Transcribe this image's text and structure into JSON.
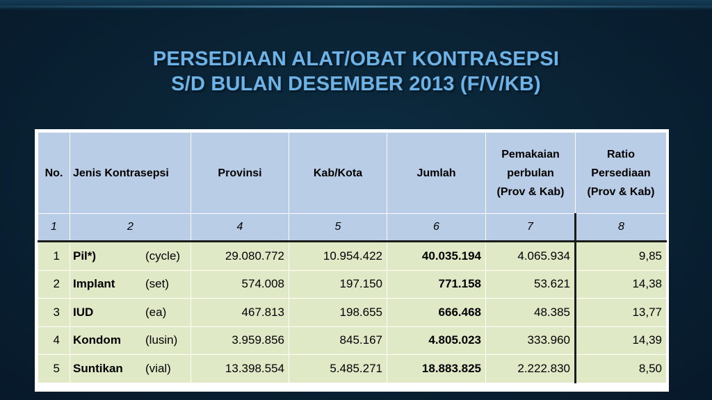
{
  "title": {
    "line1": "PERSEDIAAN ALAT/OBAT KONTRASEPSI",
    "line2": "S/D BULAN DESEMBER 2013 (F/V/KB)"
  },
  "colors": {
    "background": "#0a2436",
    "title": "#6fb2e6",
    "header_fill": "#b9cde6",
    "row_fill": "#dfe9c5"
  },
  "table": {
    "headers": {
      "no": "No.",
      "jenis": "Jenis Kontrasepsi",
      "provinsi": "Provinsi",
      "kabkota": "Kab/Kota",
      "jumlah": "Jumlah",
      "pemakaian_l1": "Pemakaian",
      "pemakaian_l2": "perbulan",
      "pemakaian_l3": "(Prov & Kab)",
      "ratio_l1": "Ratio",
      "ratio_l2": "Persediaan",
      "ratio_l3": "(Prov & Kab)"
    },
    "index_row": [
      "1",
      "2",
      "4",
      "5",
      "6",
      "7",
      "8"
    ],
    "rows": [
      {
        "no": "1",
        "name": "Pil*)",
        "unit": "(cycle)",
        "provinsi": "29.080.772",
        "kabkota": "10.954.422",
        "jumlah": "40.035.194",
        "pemakaian": "4.065.934",
        "ratio": "9,85"
      },
      {
        "no": "2",
        "name": "Implant",
        "unit": "(set)",
        "provinsi": "574.008",
        "kabkota": "197.150",
        "jumlah": "771.158",
        "pemakaian": "53.621",
        "ratio": "14,38"
      },
      {
        "no": "3",
        "name": "IUD",
        "unit": "(ea)",
        "provinsi": "467.813",
        "kabkota": "198.655",
        "jumlah": "666.468",
        "pemakaian": "48.385",
        "ratio": "13,77"
      },
      {
        "no": "4",
        "name": "Kondom",
        "unit": "(lusin)",
        "provinsi": "3.959.856",
        "kabkota": "845.167",
        "jumlah": "4.805.023",
        "pemakaian": "333.960",
        "ratio": "14,39"
      },
      {
        "no": "5",
        "name": "Suntikan",
        "unit": "(vial)",
        "provinsi": "13.398.554",
        "kabkota": "5.485.271",
        "jumlah": "18.883.825",
        "pemakaian": "2.222.830",
        "ratio": "8,50"
      }
    ]
  }
}
